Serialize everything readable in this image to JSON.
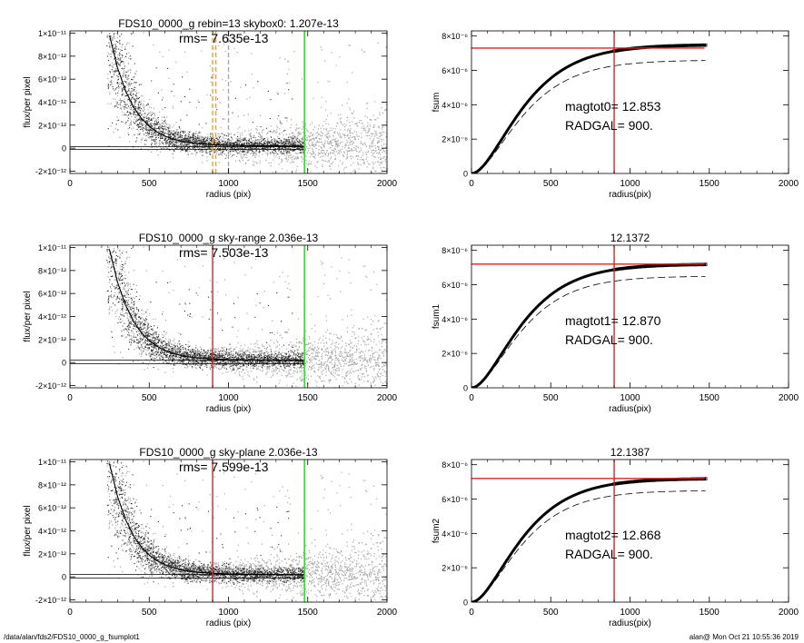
{
  "footer": {
    "left": "/data/alan/fds2/FDS10_0000_g_fsumplot1",
    "right": "alan@  Mon Oct 21 10:55:36 2019"
  },
  "colors": {
    "red": "#e02020",
    "green": "#33dd33",
    "orange": "#e8a23c",
    "grey": "#a8a8a8",
    "dark": "#303030"
  },
  "chart_data": [
    {
      "type": "scatter",
      "title": "FDS10_0000_g rebin=13    skybox0:  1.207e-13",
      "rms_label": "rms= 7.635e-13",
      "xlabel": "radius (pix)",
      "ylabel": "flux/per pixel",
      "xlim": [
        0,
        2000
      ],
      "ylim": [
        -2.2e-12,
        1.02e-11
      ],
      "xticks": [
        0,
        500,
        1000,
        1500,
        2000
      ],
      "xtick_labels": [
        "0",
        "500",
        "1000",
        "1500",
        "2000"
      ],
      "yticks": [
        -2e-12,
        0,
        2e-12,
        4e-12,
        6e-12,
        8e-12,
        1e-11
      ],
      "ytick_labels": [
        "-2×10⁻¹²",
        "0",
        "2×10⁻¹²",
        "4×10⁻¹²",
        "6×10⁻¹²",
        "8×10⁻¹²",
        "1×10⁻¹¹"
      ],
      "vlines": [
        {
          "x": 900,
          "color": "orange",
          "style": "dashed"
        },
        {
          "x": 920,
          "color": "orange",
          "style": "dashed"
        },
        {
          "x": 1000,
          "color": "grey",
          "style": "dashed"
        },
        {
          "x": 1480,
          "color": "green",
          "style": "solid"
        }
      ],
      "hlines": [
        {
          "y": 1.2e-13
        },
        {
          "y": -1e-13
        }
      ],
      "profile": {
        "x": [
          250,
          300,
          350,
          400,
          450,
          500,
          550,
          600,
          650,
          700,
          800,
          900,
          1000,
          1200,
          1480
        ],
        "y": [
          9.8e-12,
          7e-12,
          5e-12,
          3.6e-12,
          2.6e-12,
          1.9e-12,
          1.4e-12,
          1.05e-12,
          8e-13,
          6e-13,
          4e-13,
          3e-13,
          2.5e-13,
          2e-13,
          1.8e-13
        ]
      }
    },
    {
      "type": "line",
      "title": "",
      "xlabel": "radius(pix)",
      "ylabel": "fsum",
      "xlim": [
        0,
        2000
      ],
      "ylim": [
        0,
        8.3e-06
      ],
      "xticks": [
        0,
        500,
        1000,
        1500,
        2000
      ],
      "xtick_labels": [
        "0",
        "500",
        "1000",
        "1500",
        "2000"
      ],
      "yticks": [
        0,
        2e-06,
        4e-06,
        6e-06,
        8e-06
      ],
      "ytick_labels": [
        "0",
        "2×10⁻⁶",
        "4×10⁻⁶",
        "6×10⁻⁶",
        "8×10⁻⁶"
      ],
      "annotations": [
        "magtot0=  12.853",
        "RADGAL=    900."
      ],
      "vline": 900,
      "hline": 7.3e-06,
      "main_asymptote": 7.5e-06,
      "dashed_asymptote": 6.6e-06,
      "scale_r": 190
    },
    {
      "type": "scatter",
      "title": "FDS10_0000_g sky-range  2.036e-13",
      "rms_label": "rms= 7.503e-13",
      "xlabel": "radius (pix)",
      "ylabel": "flux/per pixel",
      "xlim": [
        0,
        2000
      ],
      "ylim": [
        -2.2e-12,
        1.02e-11
      ],
      "xticks": [
        0,
        500,
        1000,
        1500,
        2000
      ],
      "xtick_labels": [
        "0",
        "500",
        "1000",
        "1500",
        "2000"
      ],
      "yticks": [
        -2e-12,
        0,
        2e-12,
        4e-12,
        6e-12,
        8e-12,
        1e-11
      ],
      "ytick_labels": [
        "-2×10⁻¹²",
        "0",
        "2×10⁻¹²",
        "4×10⁻¹²",
        "6×10⁻¹²",
        "8×10⁻¹²",
        "1×10⁻¹¹"
      ],
      "vlines": [
        {
          "x": 900,
          "color": "red",
          "style": "solid"
        },
        {
          "x": 1480,
          "color": "green",
          "style": "solid"
        }
      ],
      "hlines": [
        {
          "y": 2e-13
        },
        {
          "y": -1e-13
        }
      ],
      "profile": {
        "x": [
          250,
          300,
          350,
          400,
          450,
          500,
          550,
          600,
          650,
          700,
          800,
          900,
          1000,
          1200,
          1480
        ],
        "y": [
          9.8e-12,
          7e-12,
          5e-12,
          3.6e-12,
          2.6e-12,
          1.9e-12,
          1.4e-12,
          1.05e-12,
          8e-13,
          6e-13,
          4e-13,
          3e-13,
          2.5e-13,
          2e-13,
          1.8e-13
        ]
      }
    },
    {
      "type": "line",
      "title": "12.1372",
      "xlabel": "radius(pix)",
      "ylabel": "fsum1",
      "xlim": [
        0,
        2000
      ],
      "ylim": [
        0,
        8.3e-06
      ],
      "xticks": [
        0,
        500,
        1000,
        1500,
        2000
      ],
      "xtick_labels": [
        "0",
        "500",
        "1000",
        "1500",
        "2000"
      ],
      "yticks": [
        0,
        2e-06,
        4e-06,
        6e-06,
        8e-06
      ],
      "ytick_labels": [
        "0",
        "2×10⁻⁶",
        "4×10⁻⁶",
        "6×10⁻⁶",
        "8×10⁻⁶"
      ],
      "annotations": [
        "magtot1=  12.870",
        "RADGAL=    900."
      ],
      "vline": 900,
      "hline": 7.2e-06,
      "main_asymptote": 7.2e-06,
      "dashed_asymptote": 6.5e-06,
      "scale_r": 185
    },
    {
      "type": "scatter",
      "title": "FDS10_0000_g sky-plane  2.036e-13",
      "rms_label": "rms= 7.599e-13",
      "xlabel": "radius (pix)",
      "ylabel": "flux/per pixel",
      "xlim": [
        0,
        2000
      ],
      "ylim": [
        -2.2e-12,
        1.02e-11
      ],
      "xticks": [
        0,
        500,
        1000,
        1500,
        2000
      ],
      "xtick_labels": [
        "0",
        "500",
        "1000",
        "1500",
        "2000"
      ],
      "yticks": [
        -2e-12,
        0,
        2e-12,
        4e-12,
        6e-12,
        8e-12,
        1e-11
      ],
      "ytick_labels": [
        "-2×10⁻¹²",
        "0",
        "2×10⁻¹²",
        "4×10⁻¹²",
        "6×10⁻¹²",
        "8×10⁻¹²",
        "1×10⁻¹¹"
      ],
      "vlines": [
        {
          "x": 900,
          "color": "red",
          "style": "solid"
        },
        {
          "x": 1480,
          "color": "green",
          "style": "solid"
        }
      ],
      "hlines": [
        {
          "y": 2e-13
        },
        {
          "y": -1e-13
        }
      ],
      "profile": {
        "x": [
          250,
          300,
          350,
          400,
          450,
          500,
          550,
          600,
          650,
          700,
          800,
          900,
          1000,
          1200,
          1480
        ],
        "y": [
          9.8e-12,
          7e-12,
          5e-12,
          3.6e-12,
          2.6e-12,
          1.9e-12,
          1.4e-12,
          1.05e-12,
          8e-13,
          6e-13,
          4e-13,
          3e-13,
          2.5e-13,
          2e-13,
          1.8e-13
        ]
      }
    },
    {
      "type": "line",
      "title": "12.1387",
      "xlabel": "radius(pix)",
      "ylabel": "fsum2",
      "xlim": [
        0,
        2000
      ],
      "ylim": [
        0,
        8.3e-06
      ],
      "xticks": [
        0,
        500,
        1000,
        1500,
        2000
      ],
      "xtick_labels": [
        "0",
        "500",
        "1000",
        "1500",
        "2000"
      ],
      "yticks": [
        0,
        2e-06,
        4e-06,
        6e-06,
        8e-06
      ],
      "ytick_labels": [
        "0",
        "2×10⁻⁶",
        "4×10⁻⁶",
        "6×10⁻⁶",
        "8×10⁻⁶"
      ],
      "annotations": [
        "magtot2=  12.868",
        "RADGAL=    900."
      ],
      "vline": 900,
      "hline": 7.2e-06,
      "main_asymptote": 7.2e-06,
      "dashed_asymptote": 6.5e-06,
      "scale_r": 185
    }
  ]
}
